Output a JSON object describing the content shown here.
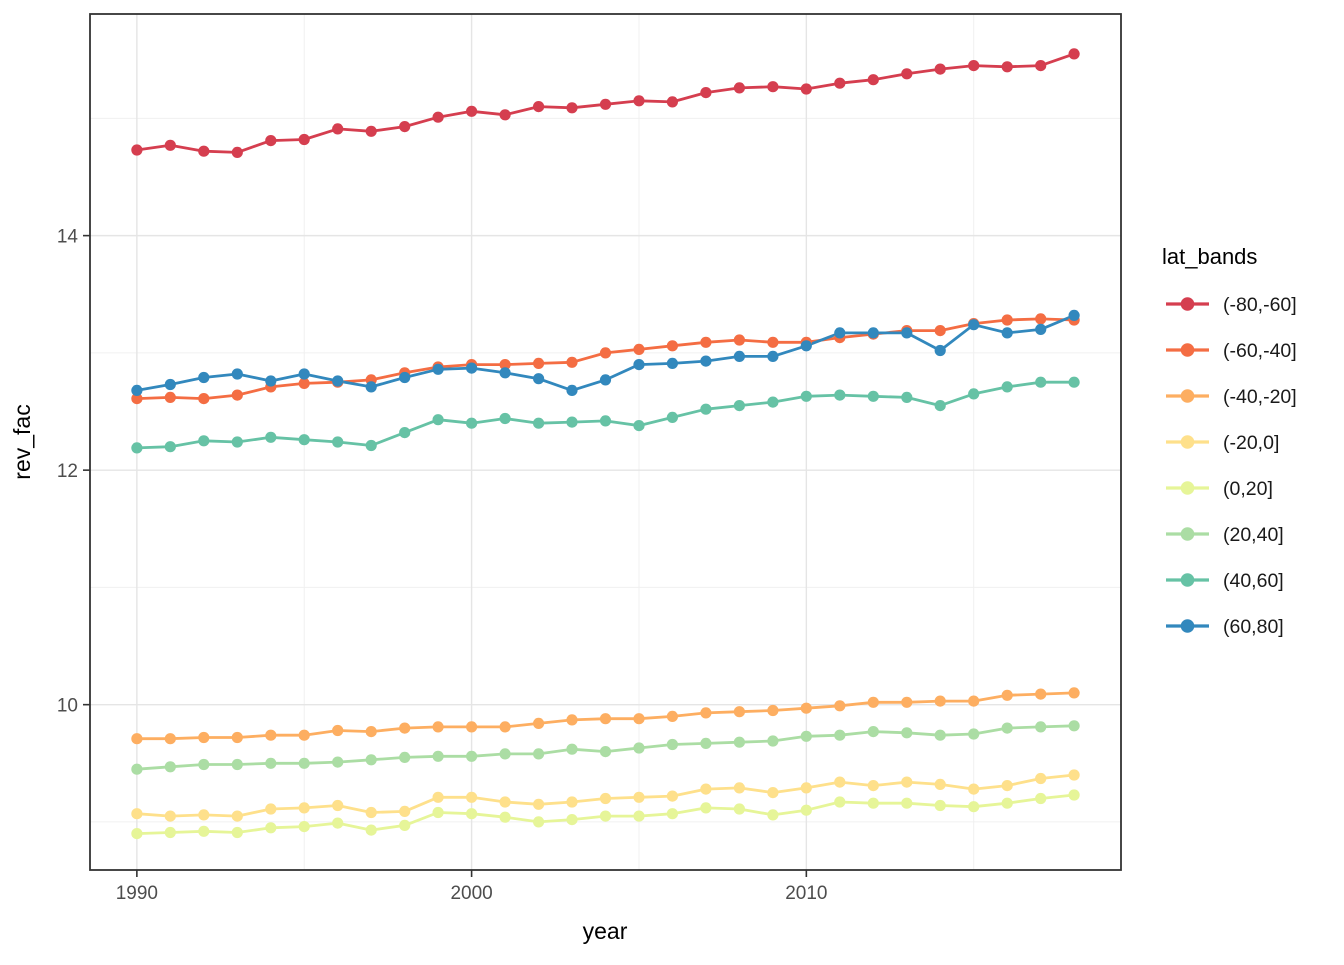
{
  "chart_data": {
    "type": "line",
    "title": "",
    "xlabel": "year",
    "ylabel": "rev_fac",
    "legend_title": "lat_bands",
    "legend_position": "right",
    "grid": true,
    "marker": "point",
    "xlim": [
      1988.6,
      2019.4
    ],
    "ylim": [
      8.59,
      15.89
    ],
    "x_ticks": [
      1990,
      2000,
      2010
    ],
    "x_minor_ticks": [
      1995,
      2005,
      2015
    ],
    "y_ticks": [
      14,
      12,
      10
    ],
    "y_minor_ticks": [
      15,
      13,
      11,
      9
    ],
    "x": [
      1990,
      1991,
      1992,
      1993,
      1994,
      1995,
      1996,
      1997,
      1998,
      1999,
      2000,
      2001,
      2002,
      2003,
      2004,
      2005,
      2006,
      2007,
      2008,
      2009,
      2010,
      2011,
      2012,
      2013,
      2014,
      2015,
      2016,
      2017,
      2018
    ],
    "series": [
      {
        "name": "(-80,-60]",
        "color": "#D53E4F",
        "values": [
          14.73,
          14.77,
          14.72,
          14.71,
          14.81,
          14.82,
          14.91,
          14.89,
          14.93,
          15.01,
          15.06,
          15.03,
          15.1,
          15.09,
          15.12,
          15.15,
          15.14,
          15.22,
          15.26,
          15.27,
          15.25,
          15.3,
          15.33,
          15.38,
          15.42,
          15.45,
          15.44,
          15.45,
          15.55
        ]
      },
      {
        "name": "(-60,-40]",
        "color": "#F46D43",
        "values": [
          12.61,
          12.62,
          12.61,
          12.64,
          12.71,
          12.74,
          12.75,
          12.77,
          12.83,
          12.88,
          12.9,
          12.9,
          12.91,
          12.92,
          13.0,
          13.03,
          13.06,
          13.09,
          13.11,
          13.09,
          13.09,
          13.13,
          13.16,
          13.19,
          13.19,
          13.25,
          13.28,
          13.29,
          13.28
        ]
      },
      {
        "name": "(-40,-20]",
        "color": "#FDAE61",
        "values": [
          9.71,
          9.71,
          9.72,
          9.72,
          9.74,
          9.74,
          9.78,
          9.77,
          9.8,
          9.81,
          9.81,
          9.81,
          9.84,
          9.87,
          9.88,
          9.88,
          9.9,
          9.93,
          9.94,
          9.95,
          9.97,
          9.99,
          10.02,
          10.02,
          10.03,
          10.03,
          10.08,
          10.09,
          10.1
        ]
      },
      {
        "name": "(-20,0]",
        "color": "#FEE08B",
        "values": [
          9.07,
          9.05,
          9.06,
          9.05,
          9.11,
          9.12,
          9.14,
          9.08,
          9.09,
          9.21,
          9.21,
          9.17,
          9.15,
          9.17,
          9.2,
          9.21,
          9.22,
          9.28,
          9.29,
          9.25,
          9.29,
          9.34,
          9.31,
          9.34,
          9.32,
          9.28,
          9.31,
          9.37,
          9.4
        ]
      },
      {
        "name": "(0,20]",
        "color": "#E6F598",
        "values": [
          8.9,
          8.91,
          8.92,
          8.91,
          8.95,
          8.96,
          8.99,
          8.93,
          8.97,
          9.08,
          9.07,
          9.04,
          9.0,
          9.02,
          9.05,
          9.05,
          9.07,
          9.12,
          9.11,
          9.06,
          9.1,
          9.17,
          9.16,
          9.16,
          9.14,
          9.13,
          9.16,
          9.2,
          9.23
        ]
      },
      {
        "name": "(20,40]",
        "color": "#ABDDA4",
        "values": [
          9.45,
          9.47,
          9.49,
          9.49,
          9.5,
          9.5,
          9.51,
          9.53,
          9.55,
          9.56,
          9.56,
          9.58,
          9.58,
          9.62,
          9.6,
          9.63,
          9.66,
          9.67,
          9.68,
          9.69,
          9.73,
          9.74,
          9.77,
          9.76,
          9.74,
          9.75,
          9.8,
          9.81,
          9.82
        ]
      },
      {
        "name": "(40,60]",
        "color": "#66C2A5",
        "values": [
          12.19,
          12.2,
          12.25,
          12.24,
          12.28,
          12.26,
          12.24,
          12.21,
          12.32,
          12.43,
          12.4,
          12.44,
          12.4,
          12.41,
          12.42,
          12.38,
          12.45,
          12.52,
          12.55,
          12.58,
          12.63,
          12.64,
          12.63,
          12.62,
          12.55,
          12.65,
          12.71,
          12.75,
          12.75
        ]
      },
      {
        "name": "(60,80]",
        "color": "#3288BD",
        "values": [
          12.68,
          12.73,
          12.79,
          12.82,
          12.76,
          12.82,
          12.76,
          12.71,
          12.79,
          12.86,
          12.87,
          12.83,
          12.78,
          12.68,
          12.77,
          12.9,
          12.91,
          12.93,
          12.97,
          12.97,
          13.06,
          13.17,
          13.17,
          13.17,
          13.02,
          13.24,
          13.17,
          13.2,
          13.32
        ]
      }
    ],
    "legend_entries": [
      "(-80,-60]",
      "(-60,-40]",
      "(-40,-20]",
      "(-20,0]",
      "(0,20]",
      "(20,40]",
      "(40,60]",
      "(60,80]"
    ]
  },
  "style": {
    "panel_border_color": "#333333",
    "grid_major_color": "#E5E5E5",
    "grid_minor_color": "#F0F0F0",
    "tick_color": "#333333",
    "tick_label_color": "#4D4D4D"
  }
}
